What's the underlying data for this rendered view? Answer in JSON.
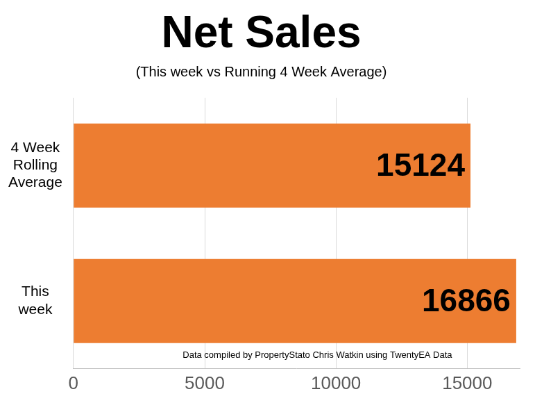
{
  "chart_data": {
    "type": "bar",
    "orientation": "horizontal",
    "title": "Net Sales",
    "subtitle": "(This week vs Running 4 Week Average)",
    "categories": [
      [
        "4 Week",
        "Rolling",
        "Average"
      ],
      [
        "This",
        "week"
      ]
    ],
    "values": [
      15124,
      16866
    ],
    "color": "#ed7d31",
    "xlim": [
      0,
      17000
    ],
    "xticks": [
      0,
      5000,
      10000,
      15000
    ],
    "grid": true,
    "data_labels": true,
    "annotation": "Data compiled by PropertyStato Chris Watkin using TwentyEA Data"
  }
}
